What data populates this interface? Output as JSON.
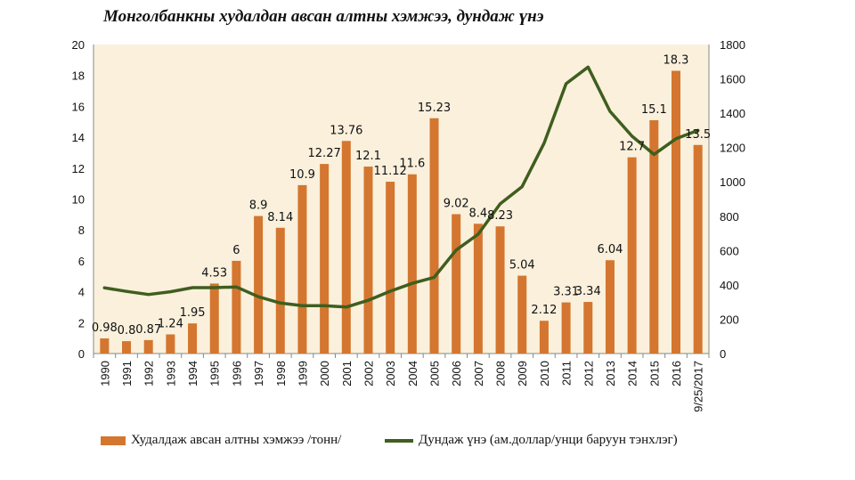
{
  "chart_data": {
    "type": "bar",
    "title": "Монголбанкны худалдан авсан алтны хэмжээ, дундаж үнэ",
    "categories": [
      "1990",
      "1991",
      "1992",
      "1993",
      "1994",
      "1995",
      "1996",
      "1997",
      "1998",
      "1999",
      "2000",
      "2001",
      "2002",
      "2003",
      "2004",
      "2005",
      "2006",
      "2007",
      "2008",
      "2009",
      "2010",
      "2011",
      "2012",
      "2013",
      "2014",
      "2015",
      "2016",
      "9/25/2017"
    ],
    "series": [
      {
        "name": "Худалдаж авсан алтны хэмжээ /тонн/",
        "type": "bar",
        "axis": "left",
        "color": "#D4762F",
        "values": [
          0.98,
          0.8,
          0.87,
          1.24,
          1.95,
          4.53,
          6,
          8.9,
          8.14,
          10.9,
          12.27,
          13.76,
          12.1,
          11.12,
          11.6,
          15.23,
          9.02,
          8.4,
          8.23,
          5.04,
          2.12,
          3.31,
          3.34,
          6.04,
          12.7,
          15.1,
          18.3,
          13.5
        ],
        "labels": [
          "0.98",
          "0.8",
          "0.87",
          "1.24",
          "1.95",
          "4.53",
          "6",
          "8.9",
          "8.14",
          "10.9",
          "12.27",
          "13.76",
          "12.1",
          "11.12",
          "11.6",
          "15.23",
          "9.02",
          "8.4",
          "8.23",
          "5.04",
          "2.12",
          "3.31",
          "3.34",
          "6.04",
          "12.7",
          "15.1",
          "18.3",
          "13.5"
        ]
      },
      {
        "name": "Дундаж үнэ (ам.доллар/унци баруун тэнхлэг)",
        "type": "line",
        "axis": "right",
        "color": "#3F5E1F",
        "values": [
          383,
          362,
          344,
          360,
          384,
          384,
          388,
          331,
          294,
          279,
          279,
          271,
          310,
          363,
          409,
          444,
          603,
          695,
          872,
          972,
          1225,
          1572,
          1669,
          1411,
          1266,
          1160,
          1251,
          1300
        ]
      }
    ],
    "y_left": {
      "min": 0,
      "max": 20,
      "ticks": [
        "0",
        "2",
        "4",
        "6",
        "8",
        "10",
        "12",
        "14",
        "16",
        "18",
        "20"
      ]
    },
    "y_right": {
      "min": 0,
      "max": 1800,
      "ticks": [
        "0",
        "200",
        "400",
        "600",
        "800",
        "1000",
        "1200",
        "1400",
        "1600",
        "1800"
      ]
    },
    "legend_position": "bottom",
    "plot_background": "#FAF0DC",
    "grid": false
  }
}
